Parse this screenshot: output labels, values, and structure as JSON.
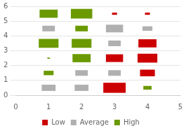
{
  "chart_data": {
    "type": "bubble",
    "marker": "square",
    "xlim": [
      0,
      5
    ],
    "ylim": [
      0,
      6
    ],
    "xticks": [
      0,
      1,
      2,
      3,
      4,
      5
    ],
    "yticks": [
      0,
      1,
      2,
      3,
      4,
      5,
      6
    ],
    "grid": "y",
    "legend": "bottom",
    "series": [
      {
        "name": "Low",
        "color": "#cc0000",
        "x": [
          3,
          4,
          4,
          3,
          4,
          4,
          3
        ],
        "values": [
          5.5,
          5.5,
          3.5,
          2.5,
          2.5,
          1.5,
          0.5
        ],
        "sizes": [
          0.15,
          0.15,
          0.55,
          0.52,
          0.6,
          0.45,
          0.68
        ]
      },
      {
        "name": "Average",
        "color": "#b0b0b0",
        "x": [
          1,
          3,
          4,
          3,
          2,
          3,
          1,
          2
        ],
        "values": [
          4.5,
          4.5,
          4.5,
          3.5,
          1.5,
          1.5,
          0.5,
          0.5
        ],
        "sizes": [
          0.38,
          0.52,
          0.3,
          0.38,
          0.38,
          0.38,
          0.42,
          0.42
        ]
      },
      {
        "name": "High",
        "color": "#6b9900",
        "x": [
          1,
          2,
          2,
          1,
          2,
          1,
          2,
          1,
          4
        ],
        "values": [
          5.5,
          5.5,
          4.5,
          3.5,
          3.5,
          2.5,
          2.5,
          1.5,
          0.5
        ],
        "sizes": [
          0.55,
          0.65,
          0.38,
          0.6,
          0.6,
          0.08,
          0.55,
          0.3,
          0.25
        ]
      }
    ]
  }
}
